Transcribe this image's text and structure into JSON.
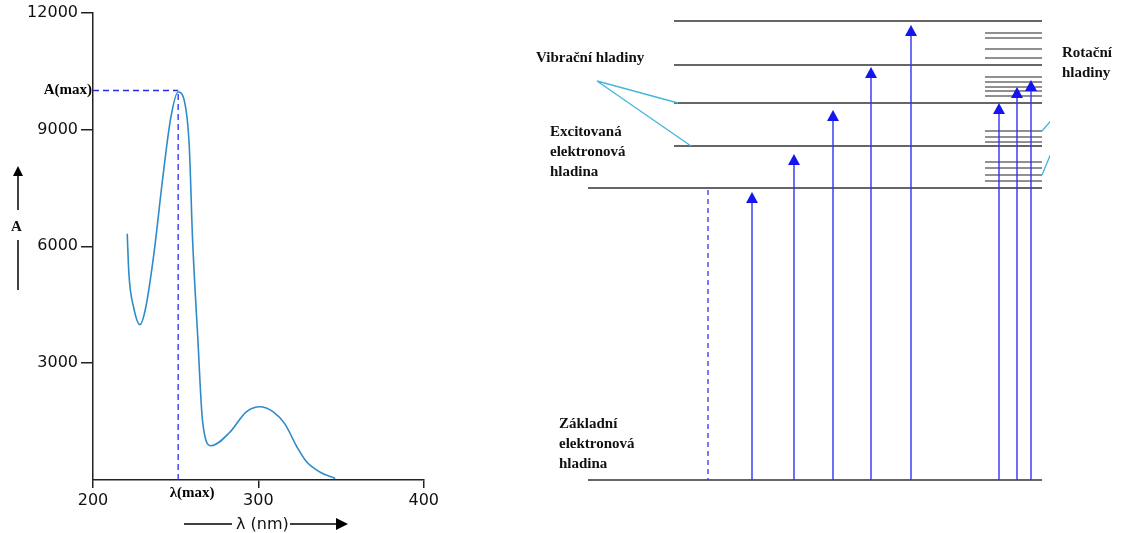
{
  "chart_data": {
    "type": "line",
    "xlabel": "λ (nm)",
    "ylabel": "A",
    "x": [
      220.7,
      221.7,
      224.7,
      228.4,
      231.8,
      236.9,
      242,
      247,
      251.5,
      255.2,
      258.2,
      260.2,
      263.3,
      266.3,
      271.4,
      282.6,
      292.7,
      300.8,
      309,
      316,
      323.2,
      329.3,
      337.4,
      346.5
    ],
    "series": [
      {
        "color": "#2e8bc9",
        "values": [
          6320,
          5300,
          4410,
          3990,
          4410,
          5830,
          7690,
          9290,
          9960,
          9740,
          8580,
          6190,
          3700,
          1490,
          880,
          1220,
          1750,
          1880,
          1750,
          1440,
          860,
          460,
          200,
          40
        ]
      }
    ],
    "xlim": [
      200,
      400
    ],
    "xticks": [
      200,
      300,
      400
    ],
    "ylim": [
      0,
      12000
    ],
    "yticks": [
      3000,
      6000,
      9000,
      12000
    ],
    "ref_lines": [
      {
        "axis": "x",
        "value": 251.5,
        "label": "λ(max)",
        "color": "#2b2bf0",
        "line_style": "dashed"
      },
      {
        "axis": "y",
        "value": 10000,
        "label": "A(max)",
        "color": "#2b2bf0",
        "line_style": "dashed"
      }
    ],
    "grid": false,
    "legend": false,
    "marker": "none",
    "line_style": "solid",
    "annotations": [
      "Vibrační hladiny",
      "Excitovaná elektronová hladina",
      "Rotační hladiny",
      "Základní elektronová hladina"
    ]
  }
}
